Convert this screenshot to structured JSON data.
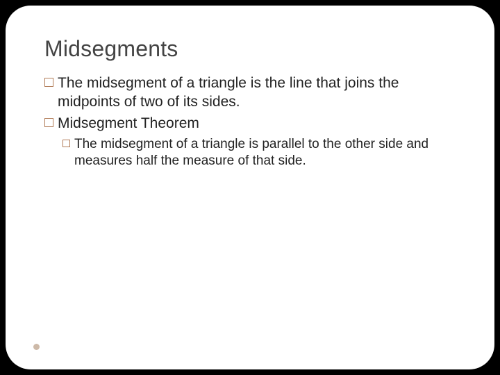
{
  "colors": {
    "page_bg": "#000000",
    "slide_bg": "#ffffff",
    "title_color": "#444444",
    "body_color": "#222222",
    "bullet_border": "#b07a56",
    "footer_dot": "#cdb9a8"
  },
  "title": "Midsegments",
  "bullets": [
    {
      "level": 1,
      "text": "The midsegment of a triangle is the line that joins the midpoints of two of its sides."
    },
    {
      "level": 1,
      "text": "Midsegment Theorem"
    },
    {
      "level": 2,
      "text": "The midsegment of a triangle is parallel to the other side and measures half the measure of that side."
    }
  ]
}
